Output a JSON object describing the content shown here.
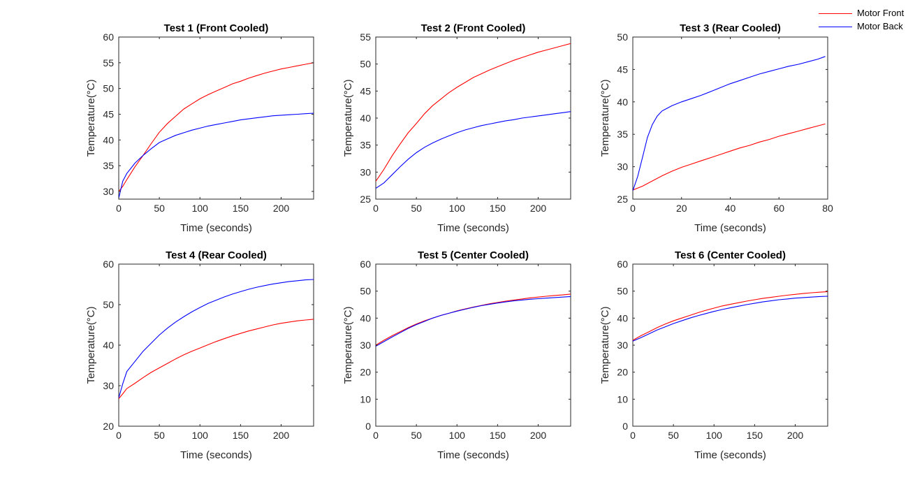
{
  "legend": {
    "items": [
      {
        "label": "Motor Front",
        "color": "#ff0000"
      },
      {
        "label": "Motor Back",
        "color": "#0000ff"
      }
    ]
  },
  "chart_data": [
    {
      "type": "line",
      "title": "Test 1 (Front Cooled)",
      "xlabel": "Time (seconds)",
      "ylabel": "Temperature(°C)",
      "xlim": [
        0,
        240
      ],
      "ylim": [
        28.5,
        60
      ],
      "xticks": [
        0,
        50,
        100,
        150,
        200
      ],
      "yticks": [
        30,
        35,
        40,
        45,
        50,
        55,
        60
      ],
      "series": [
        {
          "name": "Motor Front",
          "color": "#ff0000",
          "x": [
            0,
            5,
            10,
            20,
            30,
            40,
            50,
            60,
            70,
            80,
            90,
            100,
            110,
            120,
            130,
            140,
            150,
            160,
            170,
            180,
            190,
            200,
            210,
            220,
            230,
            240
          ],
          "y": [
            30.0,
            31.0,
            32.3,
            34.8,
            37.0,
            39.3,
            41.5,
            43.2,
            44.6,
            46.0,
            47.0,
            48.0,
            48.8,
            49.5,
            50.2,
            50.9,
            51.4,
            52.0,
            52.5,
            53.0,
            53.4,
            53.8,
            54.1,
            54.4,
            54.7,
            55.0
          ]
        },
        {
          "name": "Motor Back",
          "color": "#0000ff",
          "x": [
            0,
            5,
            10,
            20,
            30,
            40,
            50,
            60,
            70,
            80,
            90,
            100,
            110,
            120,
            130,
            140,
            150,
            160,
            170,
            180,
            190,
            200,
            210,
            220,
            230,
            240
          ],
          "y": [
            28.7,
            32.0,
            33.5,
            35.5,
            37.0,
            38.3,
            39.5,
            40.2,
            40.9,
            41.4,
            41.9,
            42.3,
            42.7,
            43.0,
            43.3,
            43.6,
            43.9,
            44.1,
            44.3,
            44.5,
            44.7,
            44.8,
            44.9,
            45.0,
            45.1,
            45.2
          ]
        }
      ]
    },
    {
      "type": "line",
      "title": "Test 2 (Front Cooled)",
      "xlabel": "Time (seconds)",
      "ylabel": "Temperature(°C)",
      "xlim": [
        0,
        240
      ],
      "ylim": [
        25,
        55
      ],
      "xticks": [
        0,
        50,
        100,
        150,
        200
      ],
      "yticks": [
        25,
        30,
        35,
        40,
        45,
        50,
        55
      ],
      "series": [
        {
          "name": "Motor Front",
          "color": "#ff0000",
          "x": [
            0,
            10,
            20,
            30,
            40,
            50,
            60,
            70,
            80,
            90,
            100,
            110,
            120,
            130,
            140,
            150,
            160,
            170,
            180,
            190,
            200,
            210,
            220,
            230,
            240
          ],
          "y": [
            28.3,
            30.5,
            33.0,
            35.2,
            37.3,
            39.0,
            40.8,
            42.3,
            43.5,
            44.7,
            45.7,
            46.6,
            47.5,
            48.2,
            48.9,
            49.5,
            50.1,
            50.7,
            51.2,
            51.7,
            52.2,
            52.6,
            53.0,
            53.4,
            53.8
          ]
        },
        {
          "name": "Motor Back",
          "color": "#0000ff",
          "x": [
            0,
            10,
            20,
            30,
            40,
            50,
            60,
            70,
            80,
            90,
            100,
            110,
            120,
            130,
            140,
            150,
            160,
            170,
            180,
            190,
            200,
            210,
            220,
            230,
            240
          ],
          "y": [
            27.0,
            28.0,
            29.5,
            31.0,
            32.4,
            33.6,
            34.6,
            35.4,
            36.1,
            36.7,
            37.3,
            37.8,
            38.2,
            38.6,
            38.9,
            39.2,
            39.5,
            39.7,
            40.0,
            40.2,
            40.4,
            40.6,
            40.8,
            41.0,
            41.2
          ]
        }
      ]
    },
    {
      "type": "line",
      "title": "Test 3 (Rear Cooled)",
      "xlabel": "Time (seconds)",
      "ylabel": "Temperature(°C)",
      "xlim": [
        0,
        80
      ],
      "ylim": [
        25,
        50
      ],
      "xticks": [
        0,
        20,
        40,
        60,
        80
      ],
      "yticks": [
        25,
        30,
        35,
        40,
        45,
        50
      ],
      "series": [
        {
          "name": "Motor Front",
          "color": "#ff0000",
          "x": [
            0,
            4,
            8,
            12,
            16,
            20,
            24,
            28,
            32,
            36,
            40,
            44,
            48,
            52,
            56,
            60,
            64,
            68,
            72,
            76,
            79
          ],
          "y": [
            26.4,
            27.0,
            27.8,
            28.6,
            29.3,
            29.9,
            30.4,
            30.9,
            31.4,
            31.9,
            32.4,
            32.9,
            33.3,
            33.8,
            34.2,
            34.7,
            35.1,
            35.5,
            35.9,
            36.3,
            36.6
          ]
        },
        {
          "name": "Motor Back",
          "color": "#0000ff",
          "x": [
            0,
            2,
            4,
            6,
            8,
            10,
            12,
            14,
            16,
            20,
            24,
            28,
            32,
            36,
            40,
            44,
            48,
            52,
            56,
            60,
            64,
            68,
            72,
            76,
            79
          ],
          "y": [
            26.3,
            28.5,
            31.5,
            34.5,
            36.5,
            37.8,
            38.6,
            39.0,
            39.4,
            40.0,
            40.5,
            41.0,
            41.6,
            42.2,
            42.8,
            43.3,
            43.8,
            44.3,
            44.7,
            45.1,
            45.5,
            45.8,
            46.2,
            46.6,
            47.0
          ]
        }
      ]
    },
    {
      "type": "line",
      "title": "Test 4 (Rear Cooled)",
      "xlabel": "Time (seconds)",
      "ylabel": "Temperature(°C)",
      "xlim": [
        0,
        240
      ],
      "ylim": [
        20,
        60
      ],
      "xticks": [
        0,
        50,
        100,
        150,
        200
      ],
      "yticks": [
        20,
        30,
        40,
        50,
        60
      ],
      "series": [
        {
          "name": "Motor Front",
          "color": "#ff0000",
          "x": [
            0,
            5,
            10,
            20,
            30,
            40,
            50,
            60,
            70,
            80,
            90,
            100,
            110,
            120,
            130,
            140,
            150,
            160,
            170,
            180,
            190,
            200,
            210,
            220,
            230,
            240
          ],
          "y": [
            26.8,
            28.0,
            29.3,
            30.6,
            32.0,
            33.3,
            34.4,
            35.5,
            36.6,
            37.6,
            38.5,
            39.3,
            40.1,
            40.9,
            41.6,
            42.3,
            42.9,
            43.5,
            44.0,
            44.5,
            45.0,
            45.4,
            45.7,
            46.0,
            46.2,
            46.4
          ]
        },
        {
          "name": "Motor Back",
          "color": "#0000ff",
          "x": [
            0,
            5,
            10,
            20,
            30,
            40,
            50,
            60,
            70,
            80,
            90,
            100,
            110,
            120,
            130,
            140,
            150,
            160,
            170,
            180,
            190,
            200,
            210,
            220,
            230,
            240
          ],
          "y": [
            27.0,
            30.5,
            33.5,
            36.0,
            38.5,
            40.5,
            42.5,
            44.2,
            45.7,
            47.0,
            48.2,
            49.3,
            50.3,
            51.1,
            51.9,
            52.6,
            53.2,
            53.8,
            54.3,
            54.7,
            55.1,
            55.4,
            55.7,
            55.9,
            56.1,
            56.2
          ]
        }
      ]
    },
    {
      "type": "line",
      "title": "Test 5 (Center Cooled)",
      "xlabel": "Time (seconds)",
      "ylabel": "Temperature(°C)",
      "xlim": [
        0,
        240
      ],
      "ylim": [
        0,
        60
      ],
      "xticks": [
        0,
        50,
        100,
        150,
        200
      ],
      "yticks": [
        0,
        10,
        20,
        30,
        40,
        50,
        60
      ],
      "series": [
        {
          "name": "Motor Front",
          "color": "#ff0000",
          "x": [
            0,
            10,
            20,
            30,
            40,
            50,
            60,
            70,
            80,
            90,
            100,
            110,
            120,
            130,
            140,
            150,
            160,
            170,
            180,
            190,
            200,
            210,
            220,
            230,
            240
          ],
          "y": [
            30.0,
            31.8,
            33.5,
            35.0,
            36.5,
            37.8,
            39.0,
            40.0,
            41.0,
            41.8,
            42.7,
            43.4,
            44.1,
            44.7,
            45.3,
            45.8,
            46.3,
            46.7,
            47.1,
            47.5,
            47.8,
            48.1,
            48.4,
            48.6,
            48.9
          ]
        },
        {
          "name": "Motor Back",
          "color": "#0000ff",
          "x": [
            0,
            10,
            20,
            30,
            40,
            50,
            60,
            70,
            80,
            90,
            100,
            110,
            120,
            130,
            140,
            150,
            160,
            170,
            180,
            190,
            200,
            210,
            220,
            230,
            240
          ],
          "y": [
            29.6,
            31.3,
            33.0,
            34.6,
            36.2,
            37.6,
            38.8,
            40.0,
            41.0,
            41.8,
            42.6,
            43.3,
            44.0,
            44.6,
            45.1,
            45.6,
            46.0,
            46.4,
            46.7,
            47.0,
            47.2,
            47.4,
            47.6,
            47.8,
            48.0
          ]
        }
      ]
    },
    {
      "type": "line",
      "title": "Test 6 (Center Cooled)",
      "xlabel": "Time (seconds)",
      "ylabel": "Temperature(°C)",
      "xlim": [
        0,
        240
      ],
      "ylim": [
        0,
        60
      ],
      "xticks": [
        0,
        50,
        100,
        150,
        200
      ],
      "yticks": [
        0,
        10,
        20,
        30,
        40,
        50,
        60
      ],
      "series": [
        {
          "name": "Motor Front",
          "color": "#ff0000",
          "x": [
            0,
            10,
            20,
            30,
            40,
            50,
            60,
            70,
            80,
            90,
            100,
            110,
            120,
            130,
            140,
            150,
            160,
            170,
            180,
            190,
            200,
            210,
            220,
            230,
            240
          ],
          "y": [
            31.8,
            33.5,
            35.0,
            36.5,
            37.8,
            39.0,
            40.0,
            41.0,
            42.0,
            42.9,
            43.7,
            44.5,
            45.1,
            45.7,
            46.3,
            46.8,
            47.3,
            47.7,
            48.1,
            48.5,
            48.8,
            49.1,
            49.4,
            49.6,
            49.8
          ]
        },
        {
          "name": "Motor Back",
          "color": "#0000ff",
          "x": [
            0,
            10,
            20,
            30,
            40,
            50,
            60,
            70,
            80,
            90,
            100,
            110,
            120,
            130,
            140,
            150,
            160,
            170,
            180,
            190,
            200,
            210,
            220,
            230,
            240
          ],
          "y": [
            31.5,
            32.8,
            34.2,
            35.6,
            36.8,
            38.0,
            39.0,
            40.0,
            40.9,
            41.7,
            42.5,
            43.2,
            43.8,
            44.4,
            45.0,
            45.5,
            46.0,
            46.4,
            46.8,
            47.1,
            47.4,
            47.6,
            47.8,
            48.0,
            48.1
          ]
        }
      ]
    }
  ]
}
